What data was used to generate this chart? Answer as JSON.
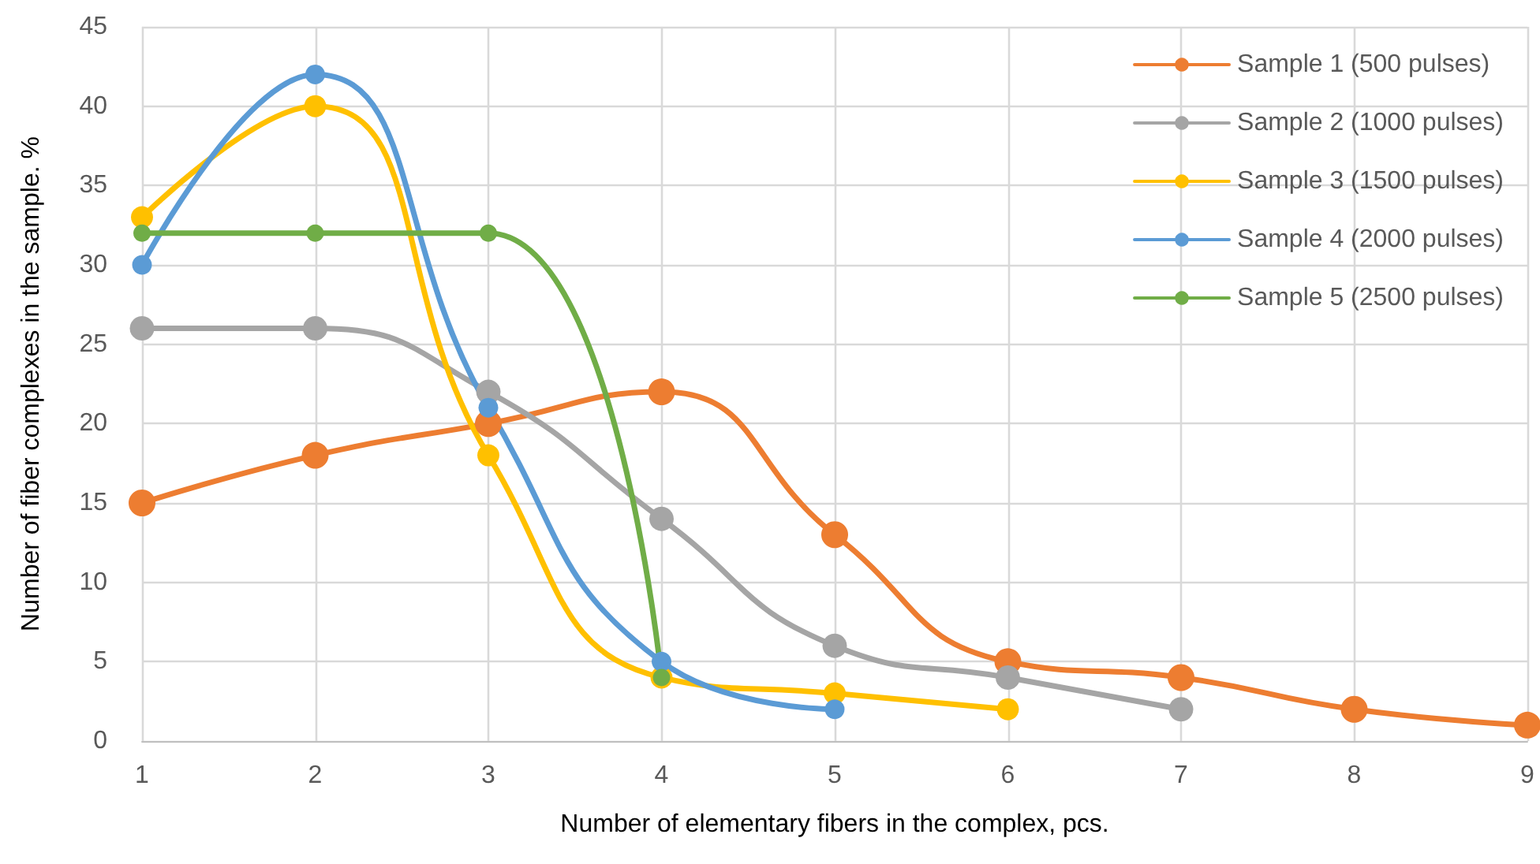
{
  "chart_data": {
    "type": "line",
    "xlabel": "Number of elementary fibers in the complex, pcs.",
    "ylabel": "Number of fiber complexes in the sample. %",
    "xlim": [
      1,
      9
    ],
    "xticks": [
      1,
      2,
      3,
      4,
      5,
      6,
      7,
      8,
      9
    ],
    "ylim": [
      0,
      45
    ],
    "yticks": [
      0,
      5,
      10,
      15,
      20,
      25,
      30,
      35,
      40,
      45
    ],
    "grid": true,
    "legend": "top right",
    "marker": "circle",
    "line_style": "solid",
    "series": [
      {
        "name": "Sample 1 (500 pulses)",
        "color": "#ed7d31",
        "x": [
          1,
          2,
          3,
          4,
          5,
          6,
          7,
          8,
          9
        ],
        "values": [
          15,
          18,
          20,
          22,
          13,
          5,
          4,
          2,
          1
        ]
      },
      {
        "name": "Sample 2 (1000 pulses)",
        "color": "#a5a5a5",
        "x": [
          1,
          2,
          3,
          4,
          5,
          6,
          7
        ],
        "values": [
          26,
          26,
          22,
          14,
          6,
          4,
          2
        ]
      },
      {
        "name": "Sample 3 (1500 pulses)",
        "color": "#ffc000",
        "x": [
          1,
          2,
          3,
          4,
          5,
          6
        ],
        "values": [
          33,
          40,
          18,
          4,
          3,
          2
        ]
      },
      {
        "name": "Sample 4 (2000 pulses)",
        "color": "#5b9bd5",
        "x": [
          1,
          2,
          3,
          4,
          5
        ],
        "values": [
          30,
          42,
          21,
          5,
          2
        ]
      },
      {
        "name": "Sample 5 (2500 pulses)",
        "color": "#70ad47",
        "x": [
          1,
          2,
          3,
          4
        ],
        "values": [
          32,
          32,
          32,
          4
        ]
      }
    ]
  }
}
